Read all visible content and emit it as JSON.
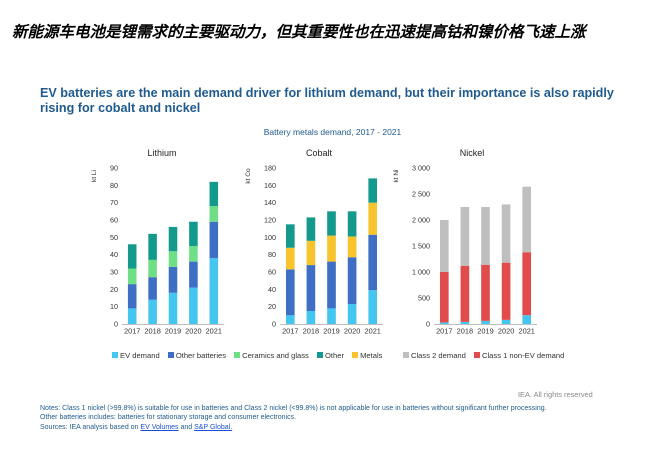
{
  "banner": "新能源车电池是锂需求的主要驱动力，但其重要性也在迅速提高钴和镍价格飞速上涨",
  "headline": "EV batteries are the main demand driver for lithium demand, but their importance is also rapidly rising for cobalt and nickel",
  "subtitle": "Battery metals demand, 2017 - 2021",
  "colors": {
    "ev_demand": "#45c6f0",
    "other_batteries": "#3f6fc4",
    "ceramics_glass": "#6fdf86",
    "other": "#139a8d",
    "metals": "#f7c42d",
    "class2": "#bfbfbf",
    "class1": "#e14b4b"
  },
  "legend_left": [
    {
      "label": "EV demand",
      "color": "#45c6f0"
    },
    {
      "label": "Other batteries",
      "color": "#3f6fc4"
    },
    {
      "label": "Ceramics and glass",
      "color": "#6fdf86"
    },
    {
      "label": "Other",
      "color": "#139a8d"
    },
    {
      "label": "Metals",
      "color": "#f7c42d"
    }
  ],
  "legend_right": [
    {
      "label": "Class 2 demand",
      "color": "#bfbfbf"
    },
    {
      "label": "Class 1 non-EV demand",
      "color": "#e14b4b"
    }
  ],
  "chart_data": [
    {
      "type": "bar",
      "stacked": true,
      "title": "Lithium",
      "ylabel": "kt Li",
      "categories": [
        "2017",
        "2018",
        "2019",
        "2020",
        "2021"
      ],
      "ylim": [
        0,
        90
      ],
      "yticks": [
        0,
        10,
        20,
        30,
        40,
        50,
        60,
        70,
        80,
        90
      ],
      "series": [
        {
          "name": "EV demand",
          "color": "#45c6f0",
          "values": [
            9,
            14,
            18,
            21,
            38
          ]
        },
        {
          "name": "Other batteries",
          "color": "#3f6fc4",
          "values": [
            14,
            13,
            15,
            15,
            21
          ]
        },
        {
          "name": "Ceramics and glass",
          "color": "#6fdf86",
          "values": [
            9,
            10,
            9,
            9,
            9
          ]
        },
        {
          "name": "Other",
          "color": "#139a8d",
          "values": [
            14,
            15,
            14,
            14,
            14
          ]
        }
      ]
    },
    {
      "type": "bar",
      "stacked": true,
      "title": "Cobalt",
      "ylabel": "kt Co",
      "categories": [
        "2017",
        "2018",
        "2019",
        "2020",
        "2021"
      ],
      "ylim": [
        0,
        180
      ],
      "yticks": [
        0,
        20,
        40,
        60,
        80,
        100,
        120,
        140,
        160,
        180
      ],
      "series": [
        {
          "name": "EV demand",
          "color": "#45c6f0",
          "values": [
            10,
            15,
            18,
            23,
            39
          ]
        },
        {
          "name": "Other batteries",
          "color": "#3f6fc4",
          "values": [
            53,
            53,
            54,
            54,
            64
          ]
        },
        {
          "name": "Metals",
          "color": "#f7c42d",
          "values": [
            25,
            28,
            30,
            24,
            37
          ]
        },
        {
          "name": "Other",
          "color": "#139a8d",
          "values": [
            27,
            27,
            28,
            29,
            28
          ]
        }
      ]
    },
    {
      "type": "bar",
      "stacked": true,
      "title": "Nickel",
      "ylabel": "kt Ni",
      "categories": [
        "2017",
        "2018",
        "2019",
        "2020",
        "2021"
      ],
      "ylim": [
        0,
        3000
      ],
      "yticks": [
        0,
        500,
        1000,
        1500,
        2000,
        2500,
        3000
      ],
      "ytick_labels": [
        "0",
        "500",
        "1 000",
        "1 500",
        "2 000",
        "2 500",
        "3 000"
      ],
      "series": [
        {
          "name": "EV demand",
          "color": "#45c6f0",
          "values": [
            30,
            40,
            60,
            80,
            170
          ]
        },
        {
          "name": "Class 1 non-EV demand",
          "color": "#e14b4b",
          "values": [
            970,
            1080,
            1080,
            1100,
            1210
          ]
        },
        {
          "name": "Class 2 demand",
          "color": "#bfbfbf",
          "values": [
            1000,
            1130,
            1110,
            1120,
            1260
          ]
        }
      ]
    }
  ],
  "copyright": "IEA. All rights reserved",
  "notes": {
    "line1": "Notes: Class 1 nickel (>99.8%) is suitable for use in batteries and Class 2 nickel (<99.8%) is not applicable for use in batteries without significant further processing.",
    "line2": "Other batteries includes: batteries for stationary storage and consumer electronics.",
    "sources_prefix": "Sources: IEA analysis based on",
    "link1": "EV Volumes",
    "and": "and",
    "link2": "S&P Global."
  }
}
